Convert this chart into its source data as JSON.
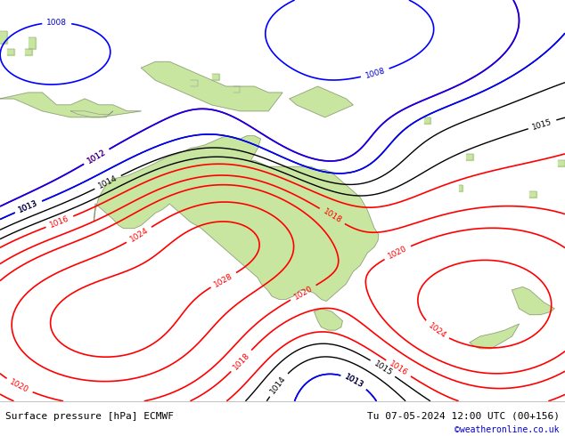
{
  "title_left": "Surface pressure [hPa] ECMWF",
  "title_right": "Tu 07-05-2024 12:00 UTC (00+156)",
  "credit": "©weatheronline.co.uk",
  "background_color": "#d0d8e8",
  "land_color": "#c8e6a0",
  "border_color": "#888888",
  "contour_color_red": "#ff0000",
  "contour_color_blue": "#0000ff",
  "contour_color_black": "#000000",
  "label_color_red": "#ff0000",
  "label_color_blue": "#0000cc",
  "label_color_black": "#000000",
  "bottom_bar_color": "#ffffff",
  "bottom_text_color": "#000000",
  "credit_color": "#0000cc",
  "figsize": [
    6.34,
    4.9
  ],
  "dpi": 100,
  "bottom_bar_height": 0.08,
  "font_size_bottom": 8
}
